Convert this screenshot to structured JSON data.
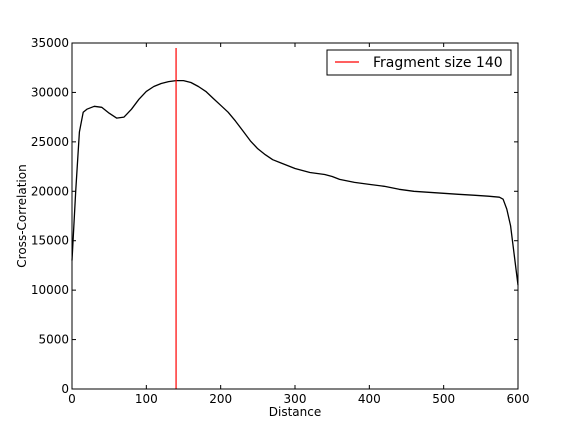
{
  "chart_data": {
    "type": "line",
    "xlabel": "Distance",
    "ylabel": "Cross-Correlation",
    "xlim": [
      0,
      600
    ],
    "ylim": [
      0,
      35000
    ],
    "xticks": [
      "0",
      "100",
      "200",
      "300",
      "400",
      "500",
      "600"
    ],
    "yticks": [
      "0",
      "5000",
      "10000",
      "15000",
      "20000",
      "25000",
      "30000",
      "35000"
    ],
    "grid": false,
    "legend_position": "top-right",
    "series": [
      {
        "color": "#000000",
        "x": [
          0,
          5,
          10,
          15,
          20,
          30,
          40,
          50,
          60,
          70,
          80,
          90,
          100,
          110,
          120,
          130,
          140,
          150,
          160,
          170,
          180,
          190,
          200,
          210,
          220,
          230,
          240,
          250,
          260,
          270,
          280,
          300,
          320,
          340,
          350,
          360,
          380,
          400,
          420,
          440,
          460,
          480,
          500,
          520,
          540,
          560,
          575,
          580,
          585,
          590,
          595,
          600
        ],
        "y": [
          13000,
          20000,
          26000,
          28000,
          28300,
          28600,
          28500,
          27900,
          27400,
          27500,
          28300,
          29300,
          30100,
          30600,
          30900,
          31100,
          31200,
          31200,
          31000,
          30600,
          30100,
          29400,
          28700,
          28000,
          27100,
          26100,
          25100,
          24300,
          23700,
          23200,
          22900,
          22300,
          21900,
          21700,
          21500,
          21200,
          20900,
          20700,
          20500,
          20200,
          20000,
          19900,
          19800,
          19700,
          19600,
          19500,
          19400,
          19200,
          18200,
          16500,
          13500,
          10500
        ]
      }
    ],
    "vline": {
      "x": 140,
      "color": "#ff0000",
      "label": "Fragment size 140"
    }
  }
}
